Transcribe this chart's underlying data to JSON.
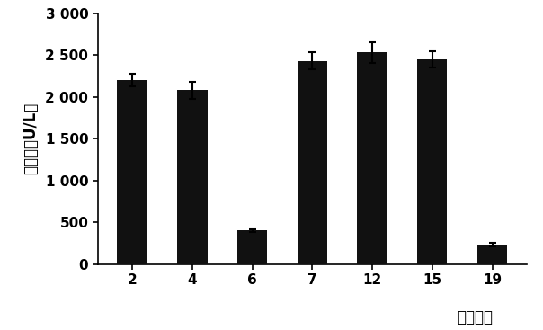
{
  "categories": [
    "2",
    "4",
    "6",
    "7",
    "12",
    "15",
    "19"
  ],
  "values": [
    2200,
    2080,
    400,
    2430,
    2530,
    2450,
    230
  ],
  "errors": [
    80,
    100,
    20,
    100,
    120,
    100,
    20
  ],
  "bar_color": "#111111",
  "ylabel": "醂活性（U/L）",
  "xlabel": "菌株编号",
  "ylim": [
    0,
    3000
  ],
  "yticks": [
    0,
    500,
    1000,
    1500,
    2000,
    2500,
    3000
  ],
  "ytick_labels": [
    "0",
    "500",
    "1 000",
    "1 500",
    "2 000",
    "2 500",
    "3 000"
  ],
  "background_color": "#ffffff",
  "ylabel_fontsize": 12,
  "xlabel_fontsize": 12,
  "tick_fontsize": 11,
  "bar_width": 0.5,
  "figsize": [
    6.04,
    3.67
  ],
  "dpi": 100
}
